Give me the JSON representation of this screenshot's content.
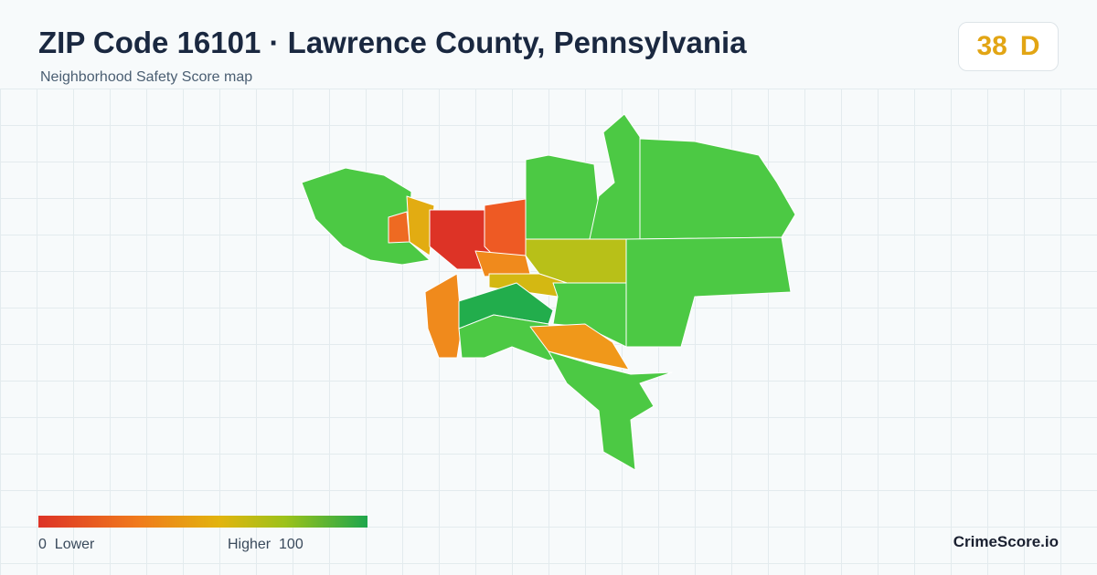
{
  "header": {
    "title": "ZIP Code 16101 · Lawrence County, Pennsylvania",
    "subtitle": "Neighborhood Safety Score map"
  },
  "score": {
    "value": 38,
    "grade": "D"
  },
  "legend": {
    "min": 0,
    "min_label": "Lower",
    "max_label": "Higher",
    "max": 100
  },
  "brand": "CrimeScore.io"
}
